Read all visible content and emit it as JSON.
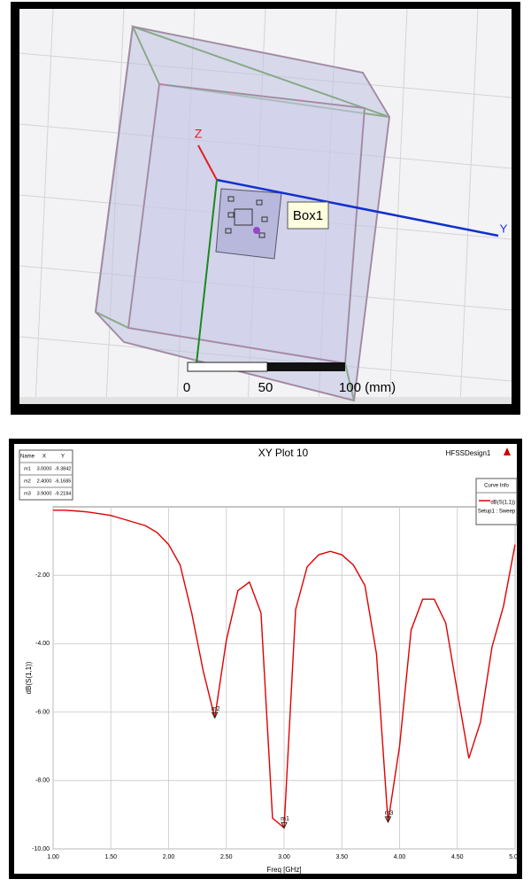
{
  "model_view": {
    "axis_labels": {
      "z": "Z",
      "y": "Y"
    },
    "object_label": "Box1",
    "scale_labels": [
      "0",
      "50",
      "100 (mm)"
    ]
  },
  "chart_data": {
    "type": "line",
    "title": "XY Plot 10",
    "subtitle": "HFSSDesign1",
    "x_label": "Freq [GHz]",
    "y_label": "dB(S(1,1))",
    "legend_title": "Curve Info",
    "legend_note": "Setup1 : Sweep",
    "x": [
      1.0,
      1.1,
      1.2,
      1.3,
      1.4,
      1.5,
      1.6,
      1.7,
      1.8,
      1.9,
      2.0,
      2.1,
      2.2,
      2.3,
      2.4,
      2.5,
      2.6,
      2.7,
      2.8,
      2.9,
      3.0,
      3.1,
      3.2,
      3.3,
      3.4,
      3.5,
      3.6,
      3.7,
      3.8,
      3.9,
      4.0,
      4.1,
      4.2,
      4.3,
      4.4,
      4.5,
      4.6,
      4.7,
      4.8,
      4.9,
      5.0
    ],
    "series": [
      {
        "name": "dB(S(1,1))",
        "color": "#e00000",
        "values": [
          -0.1,
          -0.1,
          -0.12,
          -0.15,
          -0.2,
          -0.25,
          -0.35,
          -0.45,
          -0.55,
          -0.75,
          -1.1,
          -1.7,
          -3.1,
          -4.8,
          -6.1685,
          -3.9,
          -2.45,
          -2.2,
          -3.1,
          -9.1,
          -9.3842,
          -3.0,
          -1.75,
          -1.4,
          -1.3,
          -1.4,
          -1.7,
          -2.3,
          -4.3,
          -9.2184,
          -7.0,
          -3.6,
          -2.7,
          -2.7,
          -3.4,
          -5.4,
          -7.35,
          -6.3,
          -4.1,
          -2.9,
          -1.1
        ]
      }
    ],
    "xlim": [
      1,
      5
    ],
    "ylim": [
      -10,
      0
    ],
    "xticks": [
      {
        "value": 1,
        "label": "1.00"
      },
      {
        "value": 1.5,
        "label": "1.50"
      },
      {
        "value": 2,
        "label": "2.00"
      },
      {
        "value": 2.5,
        "label": "2.50"
      },
      {
        "value": 3,
        "label": "3.00"
      },
      {
        "value": 3.5,
        "label": "3.50"
      },
      {
        "value": 4,
        "label": "4.00"
      },
      {
        "value": 4.5,
        "label": "4.50"
      },
      {
        "value": 5,
        "label": "5.00"
      }
    ],
    "yticks": [
      {
        "value": -10,
        "label": "-10.00"
      },
      {
        "value": -8,
        "label": "-8.00"
      },
      {
        "value": -6,
        "label": "-6.00"
      },
      {
        "value": -4,
        "label": "-4.00"
      },
      {
        "value": -2,
        "label": "-2.00"
      }
    ],
    "grid": true,
    "marker_table": {
      "columns": [
        "Name",
        "X",
        "Y"
      ]
    },
    "markers": [
      {
        "name": "m1",
        "x": 3.0,
        "y": -9.3842,
        "x_label": "3.0000",
        "y_label": "-9.3842"
      },
      {
        "name": "m2",
        "x": 2.4,
        "y": -6.1685,
        "x_label": "2.4000",
        "y_label": "-6.1685"
      },
      {
        "name": "m3",
        "x": 3.9,
        "y": -9.2184,
        "x_label": "3.9000",
        "y_label": "-9.2184"
      }
    ]
  }
}
